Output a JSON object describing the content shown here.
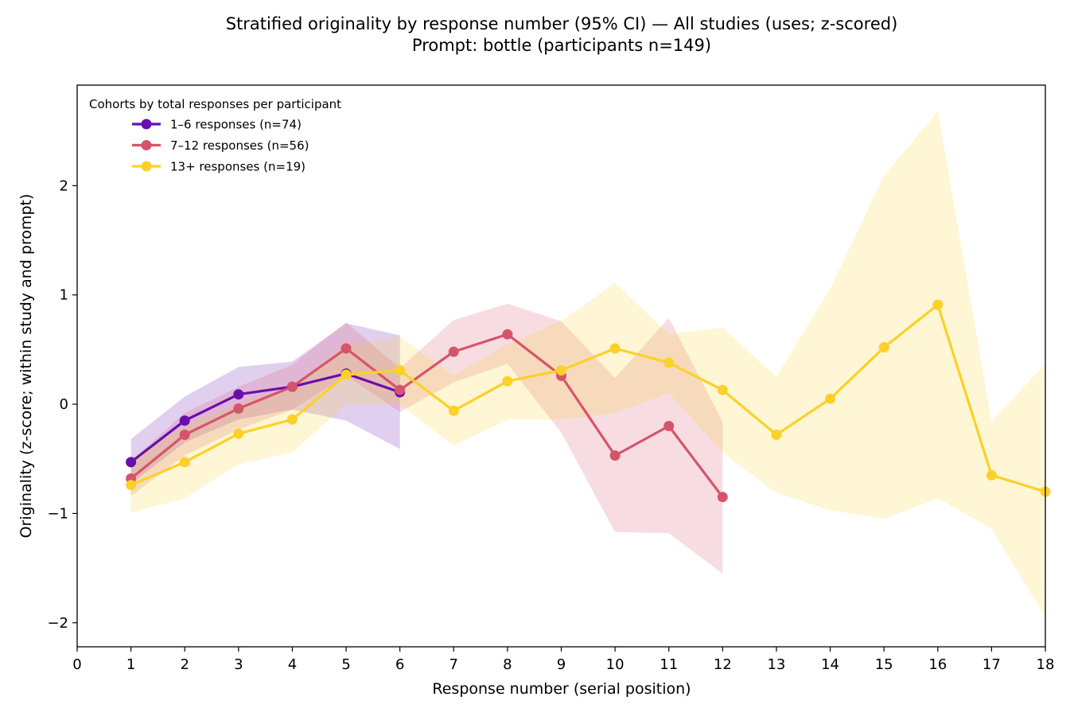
{
  "chart_data": {
    "type": "line",
    "title": "Stratified originality by response number (95% CI) — All studies (uses; z-scored)",
    "subtitle": "Prompt: bottle (participants n=149)",
    "xlabel": "Response number (serial position)",
    "ylabel": "Originality (z-score; within study and prompt)",
    "xlim": [
      0,
      18
    ],
    "ylim": [
      -2.22,
      2.92
    ],
    "xticks": [
      0,
      1,
      2,
      3,
      4,
      5,
      6,
      7,
      8,
      9,
      10,
      11,
      12,
      13,
      14,
      15,
      16,
      17,
      18
    ],
    "yticks": [
      -2,
      -1,
      0,
      1,
      2
    ],
    "ytick_labels": [
      "−2",
      "−1",
      "0",
      "1",
      "2"
    ],
    "grid": false,
    "legend": {
      "title": "Cohorts by total responses per participant",
      "placement": "top-left"
    },
    "series": [
      {
        "name": "1–6 responses (n=74)",
        "color": "#6a0dad",
        "x": [
          1,
          2,
          3,
          4,
          5,
          6
        ],
        "y": [
          -0.53,
          -0.15,
          0.09,
          0.16,
          0.28,
          0.11
        ],
        "ci_low": [
          -0.73,
          -0.35,
          -0.14,
          -0.05,
          -0.15,
          -0.41
        ],
        "ci_high": [
          -0.32,
          0.07,
          0.34,
          0.39,
          0.74,
          0.63
        ]
      },
      {
        "name": "7–12 responses (n=56)",
        "color": "#d6546b",
        "x": [
          1,
          2,
          3,
          4,
          5,
          6,
          7,
          8,
          9,
          10,
          11,
          12
        ],
        "y": [
          -0.68,
          -0.28,
          -0.04,
          0.16,
          0.51,
          0.13,
          0.48,
          0.64,
          0.26,
          -0.47,
          -0.2,
          -0.85
        ],
        "ci_low": [
          -0.84,
          -0.47,
          -0.23,
          -0.05,
          0.26,
          -0.07,
          0.2,
          0.37,
          -0.26,
          -1.17,
          -1.18,
          -1.55
        ],
        "ci_high": [
          -0.52,
          -0.08,
          0.16,
          0.36,
          0.75,
          0.33,
          0.77,
          0.92,
          0.76,
          0.24,
          0.79,
          -0.16
        ]
      },
      {
        "name": "13+ responses (n=19)",
        "color": "#fbd129",
        "x": [
          1,
          2,
          3,
          4,
          5,
          6,
          7,
          8,
          9,
          10,
          11,
          12,
          13,
          14,
          15,
          16,
          17,
          18
        ],
        "y": [
          -0.74,
          -0.53,
          -0.27,
          -0.14,
          0.27,
          0.31,
          -0.06,
          0.21,
          0.31,
          0.51,
          0.38,
          0.13,
          -0.28,
          0.05,
          0.52,
          0.91,
          -0.65,
          -0.8
        ],
        "ci_low": [
          -0.99,
          -0.86,
          -0.55,
          -0.44,
          0.0,
          0.0,
          -0.38,
          -0.14,
          -0.14,
          -0.08,
          0.1,
          -0.44,
          -0.81,
          -0.97,
          -1.05,
          -0.86,
          -1.14,
          -1.95
        ],
        "ci_high": [
          -0.48,
          -0.2,
          0.0,
          0.16,
          0.54,
          0.62,
          0.26,
          0.55,
          0.76,
          1.11,
          0.64,
          0.7,
          0.25,
          1.06,
          2.09,
          2.68,
          -0.16,
          0.37
        ]
      }
    ]
  }
}
